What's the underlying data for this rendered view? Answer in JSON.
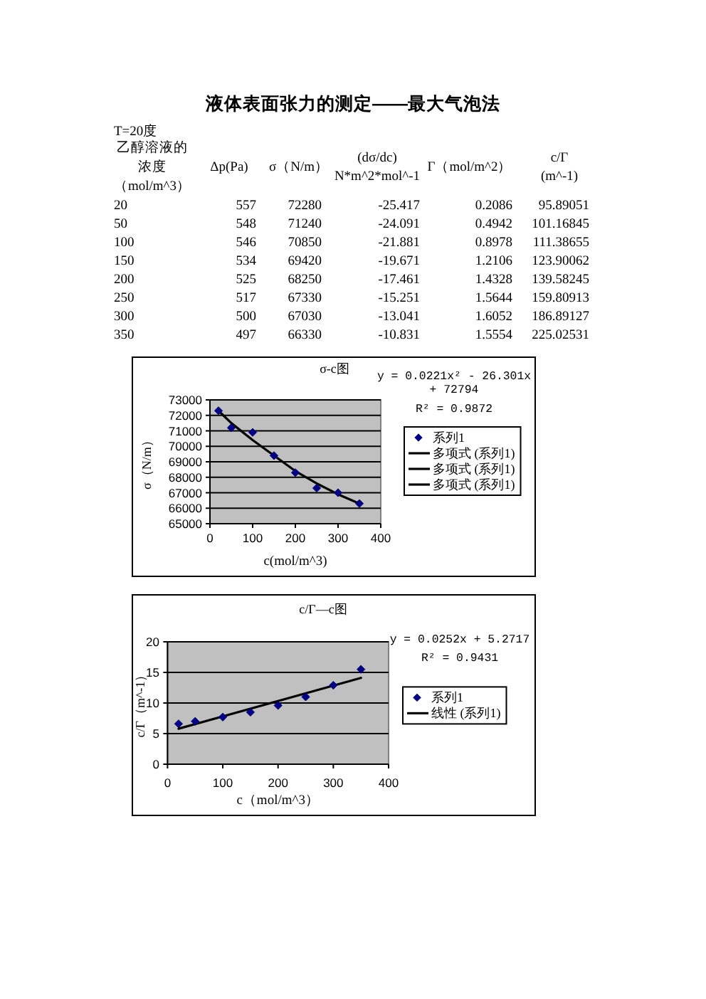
{
  "chart_data": [
    {
      "type": "other",
      "title": "液体表面张力的测定——最大气泡法",
      "subtitle": "T=20度",
      "categories": [
        "乙醇溶液的浓度（mol/m^3）",
        "Δp(Pa)",
        "σ（N/m）",
        "(dσ/dc) N*m^2*mol^-1",
        "Γ（mol/m^2）",
        "c/Γ (m^-1)"
      ],
      "annotations": [
        "20",
        "557",
        "72280",
        "-25.417",
        "0.2086",
        "95.89051",
        "50",
        "548",
        "71240",
        "-24.091",
        "0.4942",
        "101.16845",
        "100",
        "546",
        "70850",
        "-21.881",
        "0.8978",
        "111.38655",
        "150",
        "534",
        "69420",
        "-19.671",
        "1.2106",
        "123.90062",
        "200",
        "525",
        "68250",
        "-17.461",
        "1.4328",
        "139.58245",
        "250",
        "517",
        "67330",
        "-15.251",
        "1.5644",
        "159.80913",
        "300",
        "500",
        "67030",
        "-13.041",
        "1.6052",
        "186.89127",
        "350",
        "497",
        "66330",
        "-10.831",
        "1.5554",
        "225.02531"
      ]
    },
    {
      "type": "scatter",
      "title": "σ-c图",
      "xlabel": "c(mol/m^3)",
      "ylabel": "σ（N/m）",
      "annotations": [
        "y = 0.0221x² - 26.301x + 72794",
        "R² = 0.9872"
      ],
      "x": [
        20,
        50,
        100,
        150,
        200,
        250,
        300,
        350
      ],
      "series": [
        {
          "name": "系列1",
          "color": "#000080",
          "marker": "diamond",
          "values": [
            72300,
            71200,
            70900,
            69400,
            68300,
            67300,
            67000,
            66300
          ]
        },
        {
          "name": "多项式 (系列1)",
          "type": "line",
          "color": "#000000",
          "values": [
            72300,
            71500,
            70400,
            69400,
            68400,
            67600,
            66900,
            66300
          ]
        },
        {
          "name": "多项式 (系列1)",
          "type": "line",
          "color": "#000000",
          "values": [
            null,
            null,
            null,
            null,
            null,
            null,
            null,
            null
          ]
        },
        {
          "name": "多项式 (系列1)",
          "type": "line",
          "color": "#000000",
          "values": [
            null,
            null,
            null,
            null,
            null,
            null,
            null,
            null
          ]
        }
      ],
      "xlim": [
        0,
        400
      ],
      "xticks": [
        0,
        100,
        200,
        300,
        400
      ],
      "ylim": [
        65000,
        73000
      ],
      "yticks": [
        65000,
        66000,
        67000,
        68000,
        69000,
        70000,
        71000,
        72000,
        73000
      ],
      "grid": "y",
      "legend": "right"
    },
    {
      "type": "scatter",
      "title": "c/Γ—c图",
      "xlabel": "c（mol/m^3）",
      "ylabel": "c/Γ（m^-1）",
      "annotations": [
        "y = 0.0252x + 5.2717",
        "R² = 0.9431"
      ],
      "x": [
        20,
        50,
        100,
        150,
        200,
        250,
        300,
        350
      ],
      "series": [
        {
          "name": "系列1",
          "color": "#000080",
          "marker": "diamond",
          "values": [
            6.6,
            7.0,
            7.7,
            8.5,
            9.6,
            11.0,
            12.9,
            15.5
          ]
        },
        {
          "name": "线性 (系列1)",
          "type": "line",
          "color": "#000000",
          "x": [
            20,
            350
          ],
          "values": [
            5.8,
            14.1
          ]
        }
      ],
      "xlim": [
        0,
        400
      ],
      "xticks": [
        0,
        100,
        200,
        300,
        400
      ],
      "ylim": [
        0,
        20
      ],
      "yticks": [
        0,
        5,
        10,
        15,
        20
      ],
      "grid": "y",
      "legend": "right"
    }
  ]
}
